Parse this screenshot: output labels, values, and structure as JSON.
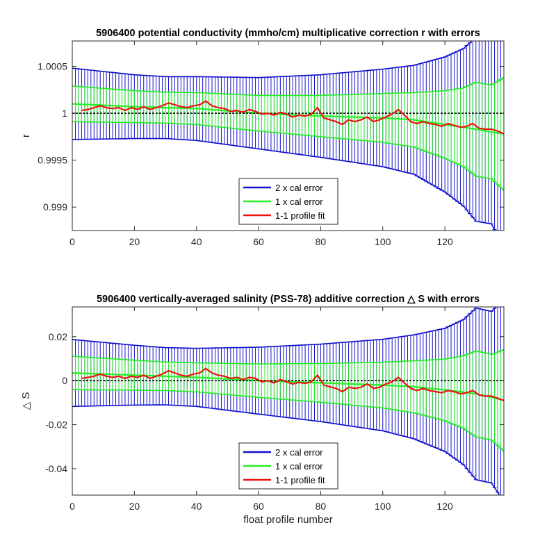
{
  "chart_data": [
    {
      "type": "line",
      "title": "5906400 potential conductivity (mmho/cm) multiplicative correction r with errors",
      "xlabel": "",
      "ylabel": "r",
      "xlim": [
        0,
        139
      ],
      "ylim": [
        0.99875,
        1.00077
      ],
      "xticks": [
        0,
        20,
        40,
        60,
        80,
        100,
        120
      ],
      "xtick_labels": [
        "0",
        "20",
        "40",
        "60",
        "80",
        "100",
        "120"
      ],
      "yticks": [
        0.999,
        0.9995,
        1.0,
        1.0005
      ],
      "ytick_labels": [
        "0.999",
        "0.9995",
        "1",
        "1.0005"
      ],
      "reference_line": 1.0,
      "legend_position": "bottom-center",
      "legend": [
        "2 x cal error",
        "1 x cal error",
        "1-1 profile fit"
      ],
      "fit_line": {
        "x": [
          0,
          20,
          40,
          60,
          80,
          100,
          110,
          120,
          126,
          130,
          135,
          139
        ],
        "y": [
          1.0001,
          1.00007,
          1.00005,
          1.0,
          0.99997,
          0.99995,
          0.99993,
          0.99988,
          0.99985,
          0.99983,
          0.9998,
          0.99978
        ]
      },
      "err_1x": {
        "x": [
          0,
          20,
          30,
          40,
          60,
          80,
          100,
          110,
          120,
          126,
          130,
          135,
          139
        ],
        "h": [
          0.00019,
          0.00017,
          0.000165,
          0.00017,
          0.00019,
          0.00022,
          0.00026,
          0.00029,
          0.00036,
          0.00042,
          0.0005,
          0.0005,
          0.0006
        ]
      },
      "err_2x": {
        "x": [
          0,
          20,
          30,
          40,
          60,
          80,
          100,
          110,
          120,
          126,
          130,
          135,
          139
        ],
        "h": [
          0.00038,
          0.00034,
          0.00033,
          0.00034,
          0.00038,
          0.00044,
          0.00052,
          0.00058,
          0.00072,
          0.00084,
          0.00098,
          0.00098,
          0.0012
        ]
      },
      "series": [
        {
          "name": "1-1 profile fit",
          "x": [
            3,
            5,
            7,
            9,
            11,
            13,
            15,
            17,
            19,
            21,
            23,
            25,
            27,
            29,
            31,
            33,
            35,
            37,
            39,
            41,
            43,
            45,
            47,
            49,
            51,
            53,
            55,
            57,
            59,
            61,
            63,
            65,
            67,
            69,
            71,
            73,
            75,
            77,
            79,
            81,
            83,
            85,
            87,
            89,
            91,
            93,
            95,
            97,
            99,
            101,
            103,
            105,
            107,
            109,
            111,
            113,
            115,
            117,
            119,
            121,
            123,
            125,
            127,
            129,
            131,
            133,
            135,
            137,
            139
          ],
          "y": [
            1.00003,
            1.00004,
            1.00006,
            1.00008,
            1.00006,
            1.00005,
            1.00006,
            1.00003,
            1.00006,
            1.00004,
            1.00007,
            1.00004,
            1.00006,
            1.00008,
            1.00011,
            1.00009,
            1.00007,
            1.00006,
            1.00008,
            1.00009,
            1.00013,
            1.00008,
            1.00006,
            1.00005,
            1.00002,
            1.00003,
            1.00001,
            1.00004,
            1.00002,
            0.99999,
            1.0,
            0.99998,
            1.00001,
            0.99999,
            0.99996,
            0.99998,
            0.99997,
            0.99999,
            1.00006,
            0.99995,
            0.99993,
            0.99991,
            0.99988,
            0.99993,
            0.99991,
            0.99993,
            0.99996,
            0.99991,
            0.99993,
            0.99996,
            0.99999,
            1.00004,
            0.99998,
            0.99991,
            0.99989,
            0.99991,
            0.99989,
            0.99988,
            0.99986,
            0.99989,
            0.99987,
            0.99985,
            0.99986,
            0.99989,
            0.99984,
            0.99983,
            0.99983,
            0.99981,
            0.99978
          ]
        }
      ]
    },
    {
      "type": "line",
      "title": "5906400 vertically-averaged salinity (PSS-78) additive correction △ S with errors",
      "xlabel": "float profile number",
      "ylabel": "△ S",
      "xlim": [
        0,
        139
      ],
      "ylim": [
        -0.052,
        0.0335
      ],
      "xticks": [
        0,
        20,
        40,
        60,
        80,
        100,
        120
      ],
      "xtick_labels": [
        "0",
        "20",
        "40",
        "60",
        "80",
        "100",
        "120"
      ],
      "yticks": [
        -0.04,
        -0.02,
        0,
        0.02
      ],
      "ytick_labels": [
        "-0.04",
        "-0.02",
        "0",
        "0.02"
      ],
      "reference_line": 0,
      "legend_position": "bottom-center",
      "legend": [
        "2 x cal error",
        "1 x cal error",
        "1-1 profile fit"
      ],
      "fit_line": {
        "x": [
          0,
          20,
          40,
          60,
          80,
          100,
          110,
          120,
          126,
          130,
          135,
          139
        ],
        "y": [
          0.0035,
          0.0025,
          0.0015,
          0.0,
          -0.001,
          -0.002,
          -0.0028,
          -0.0042,
          -0.0052,
          -0.006,
          -0.0075,
          -0.009
        ]
      },
      "err_1x": {
        "x": [
          0,
          20,
          30,
          40,
          60,
          80,
          100,
          110,
          120,
          126,
          130,
          135,
          139
        ],
        "h": [
          0.0076,
          0.0068,
          0.0065,
          0.0066,
          0.0076,
          0.0088,
          0.0104,
          0.0118,
          0.014,
          0.0165,
          0.0195,
          0.0195,
          0.023
        ]
      },
      "err_2x": {
        "x": [
          0,
          20,
          30,
          40,
          60,
          80,
          100,
          110,
          120,
          126,
          130,
          135,
          139
        ],
        "h": [
          0.0152,
          0.0136,
          0.013,
          0.0132,
          0.0152,
          0.0176,
          0.0208,
          0.0236,
          0.028,
          0.033,
          0.039,
          0.039,
          0.046
        ]
      },
      "series": [
        {
          "name": "1-1 profile fit",
          "x": [
            3,
            5,
            7,
            9,
            11,
            13,
            15,
            17,
            19,
            21,
            23,
            25,
            27,
            29,
            31,
            33,
            35,
            37,
            39,
            41,
            43,
            45,
            47,
            49,
            51,
            53,
            55,
            57,
            59,
            61,
            63,
            65,
            67,
            69,
            71,
            73,
            75,
            77,
            79,
            81,
            83,
            85,
            87,
            89,
            91,
            93,
            95,
            97,
            99,
            101,
            103,
            105,
            107,
            109,
            111,
            113,
            115,
            117,
            119,
            121,
            123,
            125,
            127,
            129,
            131,
            133,
            135,
            137,
            139
          ],
          "y": [
            0.001,
            0.0015,
            0.002,
            0.003,
            0.002,
            0.0015,
            0.002,
            0.001,
            0.002,
            0.0015,
            0.0025,
            0.001,
            0.002,
            0.003,
            0.0045,
            0.0035,
            0.0025,
            0.002,
            0.003,
            0.0035,
            0.0055,
            0.0035,
            0.0025,
            0.002,
            0.001,
            0.0015,
            0.0005,
            0.0015,
            0.001,
            -0.0005,
            0.0,
            -0.001,
            0.0005,
            -0.0005,
            -0.0015,
            -0.0008,
            -0.0012,
            -0.0005,
            0.0025,
            -0.002,
            -0.0028,
            -0.0035,
            -0.005,
            -0.003,
            -0.0035,
            -0.003,
            -0.0015,
            -0.0035,
            -0.003,
            -0.0015,
            -0.0005,
            0.0015,
            -0.001,
            -0.0035,
            -0.0045,
            -0.0035,
            -0.0045,
            -0.005,
            -0.0055,
            -0.0045,
            -0.005,
            -0.006,
            -0.0055,
            -0.0045,
            -0.0065,
            -0.007,
            -0.007,
            -0.008,
            -0.009
          ]
        }
      ]
    }
  ],
  "colors": {
    "blue": "#1010cc",
    "green": "#22f022",
    "red": "#ee1111",
    "black": "#000000"
  }
}
